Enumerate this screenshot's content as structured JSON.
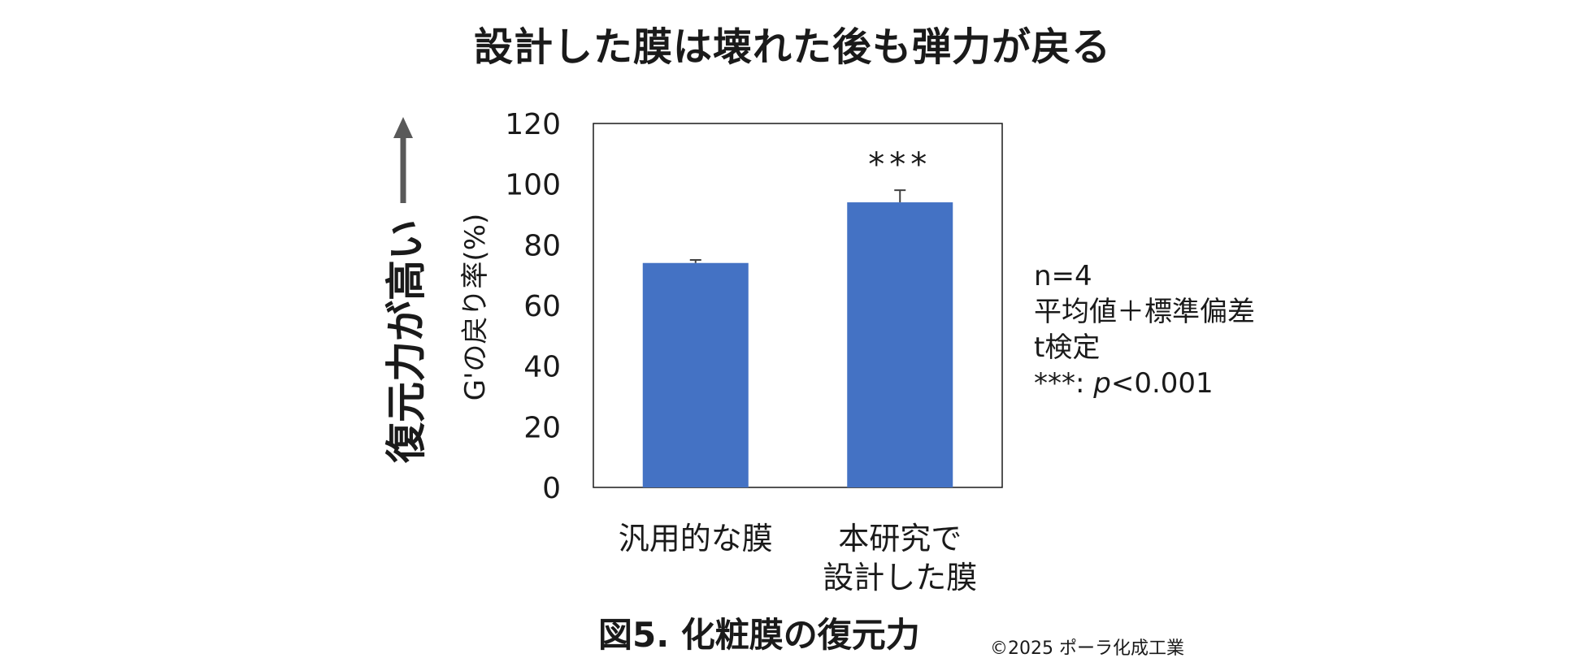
{
  "figure": {
    "title": "設計した膜は壊れた後も弾力が戻る",
    "caption": "図5.  化粧膜の復元力",
    "copyright": "©2025 ポーラ化成工業",
    "side_label": "復元力が高い"
  },
  "notes": {
    "n": "n=4",
    "stat": "平均値＋標準偏差",
    "test": "t検定",
    "sig_prefix": "***: ",
    "sig_p": "p",
    "sig_suffix": "<0.001"
  },
  "chart_data": {
    "type": "bar",
    "ylabel": "G'の戻り率(%)",
    "ylim": [
      0,
      120
    ],
    "yticks": [
      0,
      20,
      40,
      60,
      80,
      100,
      120
    ],
    "categories": [
      [
        "汎用的な膜"
      ],
      [
        "本研究で",
        "設計した膜"
      ]
    ],
    "values": [
      74,
      94
    ],
    "errors": [
      1,
      4
    ],
    "annotations": [
      "",
      "***"
    ],
    "bar_color": "#4472C4",
    "grid": false
  }
}
